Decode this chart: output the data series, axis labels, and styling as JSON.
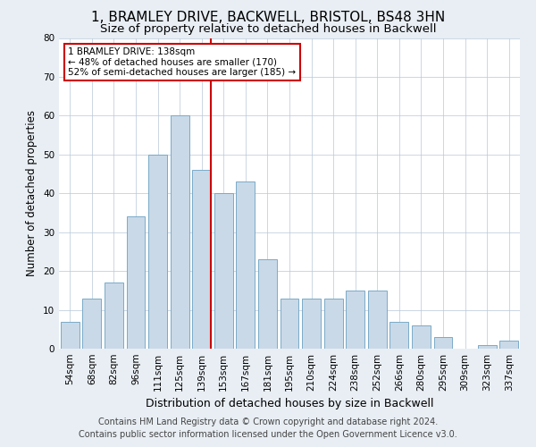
{
  "title": "1, BRAMLEY DRIVE, BACKWELL, BRISTOL, BS48 3HN",
  "subtitle": "Size of property relative to detached houses in Backwell",
  "xlabel": "Distribution of detached houses by size in Backwell",
  "ylabel": "Number of detached properties",
  "categories": [
    "54sqm",
    "68sqm",
    "82sqm",
    "96sqm",
    "111sqm",
    "125sqm",
    "139sqm",
    "153sqm",
    "167sqm",
    "181sqm",
    "195sqm",
    "210sqm",
    "224sqm",
    "238sqm",
    "252sqm",
    "266sqm",
    "280sqm",
    "295sqm",
    "309sqm",
    "323sqm",
    "337sqm"
  ],
  "values": [
    7,
    13,
    17,
    34,
    50,
    60,
    46,
    40,
    43,
    23,
    13,
    13,
    13,
    15,
    15,
    7,
    6,
    3,
    0,
    1,
    2
  ],
  "bar_color": "#c9d9e8",
  "bar_edge_color": "#7aaac8",
  "vline_color": "#cc0000",
  "annotation_text": "1 BRAMLEY DRIVE: 138sqm\n← 48% of detached houses are smaller (170)\n52% of semi-detached houses are larger (185) →",
  "annotation_box_color": "#cc0000",
  "ylim": [
    0,
    80
  ],
  "yticks": [
    0,
    10,
    20,
    30,
    40,
    50,
    60,
    70,
    80
  ],
  "footer1": "Contains HM Land Registry data © Crown copyright and database right 2024.",
  "footer2": "Contains public sector information licensed under the Open Government Licence v3.0.",
  "bg_color": "#e8eef4",
  "plot_bg_color": "#ffffff",
  "title_fontsize": 11,
  "subtitle_fontsize": 9.5,
  "xlabel_fontsize": 9,
  "ylabel_fontsize": 8.5,
  "tick_fontsize": 7.5,
  "footer_fontsize": 7,
  "annot_fontsize": 7.5
}
